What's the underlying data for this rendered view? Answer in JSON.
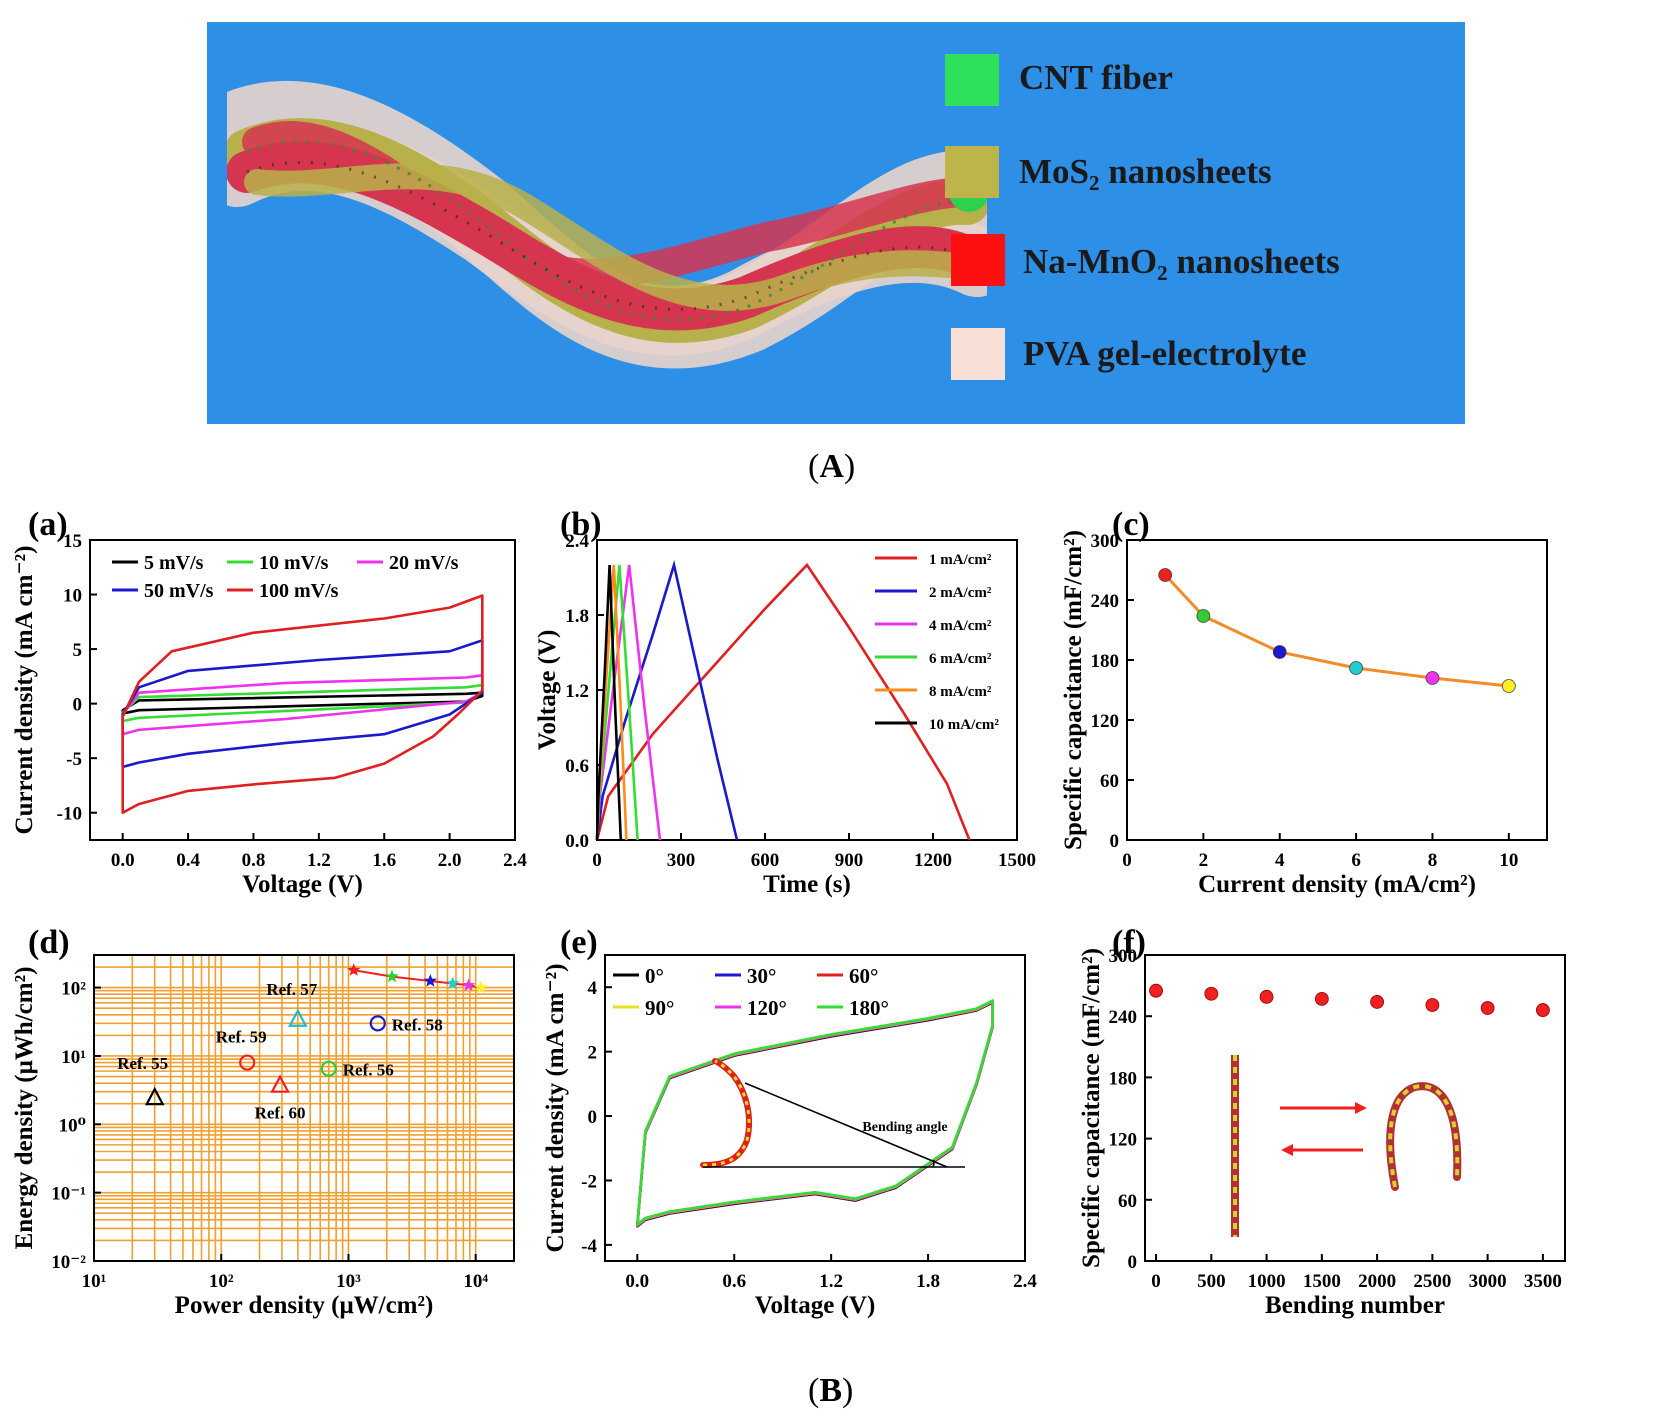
{
  "panelA": {
    "legend": [
      {
        "label": "CNT fiber",
        "color": "#2fe05a"
      },
      {
        "label": "MoS₂ nanosheets",
        "color": "#bdb54a"
      },
      {
        "label": "Na-MnO₂ nanosheets",
        "color": "#ff1010"
      },
      {
        "label": "PVA gel-electrolyte",
        "color": "#f8e0d6"
      }
    ],
    "caption": "A"
  },
  "panelB": {
    "caption": "B"
  },
  "chart_data": [
    {
      "id": "a",
      "type": "line",
      "panel_label": "(a)",
      "xlabel": "Voltage (V)",
      "ylabel": "Current density (mA cm⁻²)",
      "xlim": [
        -0.2,
        2.4
      ],
      "ylim": [
        -12.5,
        15
      ],
      "xticks": [
        0.0,
        0.4,
        0.8,
        1.2,
        1.6,
        2.0,
        2.4
      ],
      "xtick_labels": [
        "0.0",
        "0.4",
        "0.8",
        "1.2",
        "1.6",
        "2.0",
        "2.4"
      ],
      "yticks": [
        -10,
        -5,
        0,
        5,
        10,
        15
      ],
      "ytick_labels": [
        "-10",
        "-5",
        "0",
        "5",
        "10",
        "15"
      ],
      "series": [
        {
          "name": "5 mV/s",
          "color": "#000000",
          "x": [
            0,
            0.1,
            2.1,
            2.2,
            2.2,
            2.1,
            0.1,
            0
          ],
          "y": [
            -0.6,
            0.3,
            0.9,
            1.0,
            0.7,
            0.2,
            -0.6,
            -0.9
          ]
        },
        {
          "name": "10 mV/s",
          "color": "#33dd33",
          "x": [
            0,
            0.1,
            2.1,
            2.2,
            2.2,
            2.1,
            0.1,
            0
          ],
          "y": [
            -0.8,
            0.6,
            1.5,
            1.7,
            1.0,
            0.1,
            -1.3,
            -1.6
          ]
        },
        {
          "name": "20 mV/s",
          "color": "#ee33ee",
          "x": [
            0,
            0.1,
            1.0,
            2.1,
            2.2,
            2.2,
            2.1,
            1.0,
            0.1,
            0
          ],
          "y": [
            -1.0,
            1.0,
            1.9,
            2.4,
            2.6,
            1.0,
            0.2,
            -1.4,
            -2.4,
            -2.8
          ]
        },
        {
          "name": "50 mV/s",
          "color": "#1a1acc",
          "x": [
            0,
            0.1,
            0.4,
            1.2,
            2.0,
            2.2,
            2.2,
            2.0,
            1.6,
            1.0,
            0.4,
            0.1,
            0
          ],
          "y": [
            -1.0,
            1.5,
            3.0,
            4.0,
            4.8,
            5.8,
            1.0,
            -1.0,
            -2.8,
            -3.6,
            -4.6,
            -5.4,
            -5.8
          ]
        },
        {
          "name": "100 mV/s",
          "color": "#e02020",
          "x": [
            0,
            0.1,
            0.3,
            0.8,
            1.6,
            2.0,
            2.2,
            2.2,
            2.05,
            1.9,
            1.6,
            1.3,
            0.8,
            0.4,
            0.1,
            0
          ],
          "y": [
            -1.2,
            2.0,
            4.8,
            6.5,
            7.8,
            8.8,
            9.9,
            1.2,
            -1.0,
            -3.0,
            -5.5,
            -6.8,
            -7.4,
            -8.0,
            -9.2,
            -10.0
          ]
        }
      ]
    },
    {
      "id": "b",
      "type": "line",
      "panel_label": "(b)",
      "xlabel": "Time (s)",
      "ylabel": "Voltage (V)",
      "xlim": [
        0,
        1500
      ],
      "ylim": [
        0,
        2.4
      ],
      "xticks": [
        0,
        300,
        600,
        900,
        1200,
        1500
      ],
      "xtick_labels": [
        "0",
        "300",
        "600",
        "900",
        "1200",
        "1500"
      ],
      "yticks": [
        0.0,
        0.6,
        1.2,
        1.8,
        2.4
      ],
      "ytick_labels": [
        "0.0",
        "0.6",
        "1.2",
        "1.8",
        "2.4"
      ],
      "series": [
        {
          "name": "1 mA/cm²",
          "color": "#e02020",
          "x": [
            0,
            40,
            200,
            400,
            600,
            750,
            900,
            1100,
            1250,
            1330
          ],
          "y": [
            0,
            0.35,
            0.85,
            1.35,
            1.85,
            2.2,
            1.7,
            1.0,
            0.45,
            0
          ]
        },
        {
          "name": "2 mA/cm²",
          "color": "#1a1acc",
          "x": [
            0,
            20,
            100,
            200,
            275,
            350,
            430,
            500
          ],
          "y": [
            0,
            0.35,
            0.95,
            1.65,
            2.2,
            1.45,
            0.65,
            0
          ]
        },
        {
          "name": "4 mA/cm²",
          "color": "#ee33ee",
          "x": [
            0,
            10,
            60,
            115,
            170,
            225
          ],
          "y": [
            0,
            0.35,
            1.25,
            2.2,
            1.05,
            0
          ]
        },
        {
          "name": "6 mA/cm²",
          "color": "#33dd33",
          "x": [
            0,
            8,
            45,
            80,
            115,
            145
          ],
          "y": [
            0,
            0.35,
            1.3,
            2.2,
            1.05,
            0
          ]
        },
        {
          "name": "8 mA/cm²",
          "color": "#ff8c1a",
          "x": [
            0,
            6,
            35,
            60,
            85,
            105
          ],
          "y": [
            0,
            0.35,
            1.35,
            2.2,
            1.05,
            0
          ]
        },
        {
          "name": "10 mA/cm²",
          "color": "#000000",
          "x": [
            0,
            5,
            28,
            45,
            65,
            85
          ],
          "y": [
            0,
            0.35,
            1.35,
            2.2,
            1.05,
            0
          ]
        }
      ]
    },
    {
      "id": "c",
      "type": "line",
      "panel_label": "(c)",
      "xlabel": "Current density (mA/cm²)",
      "ylabel": "Specific capacitance (mF/cm²)",
      "xlim": [
        0,
        11
      ],
      "ylim": [
        0,
        300
      ],
      "xticks": [
        0,
        2,
        4,
        6,
        8,
        10
      ],
      "xtick_labels": [
        "0",
        "2",
        "4",
        "6",
        "8",
        "10"
      ],
      "yticks": [
        0,
        60,
        120,
        180,
        240,
        300
      ],
      "ytick_labels": [
        "0",
        "60",
        "120",
        "180",
        "240",
        "300"
      ],
      "line_color": "#f28c28",
      "points": [
        {
          "x": 1,
          "y": 265,
          "color": "#ee2020"
        },
        {
          "x": 2,
          "y": 224,
          "color": "#33cc33"
        },
        {
          "x": 4,
          "y": 188,
          "color": "#1a1acc"
        },
        {
          "x": 6,
          "y": 172,
          "color": "#22cccc"
        },
        {
          "x": 8,
          "y": 162,
          "color": "#ee33ee"
        },
        {
          "x": 10,
          "y": 154,
          "color": "#ffee22"
        }
      ]
    },
    {
      "id": "d",
      "type": "scatter",
      "panel_label": "(d)",
      "xlabel": "Power density (μW/cm²)",
      "ylabel": "Energy density (μWh/cm²)",
      "x_scale": "log",
      "y_scale": "log",
      "xlim": [
        10,
        20000
      ],
      "ylim": [
        0.01,
        300
      ],
      "xticks": [
        10,
        100,
        1000,
        10000
      ],
      "xtick_labels": [
        "10¹",
        "10²",
        "10³",
        "10⁴"
      ],
      "yticks": [
        0.01,
        0.1,
        1,
        10,
        100
      ],
      "ytick_labels": [
        "10⁻²",
        "10⁻¹",
        "10⁰",
        "10¹",
        "10²"
      ],
      "grid_color": "#f0a030",
      "refs": [
        {
          "label": "Ref. 55",
          "x": 30,
          "y": 2.5,
          "marker": "triangle",
          "color": "#000000"
        },
        {
          "label": "Ref. 56",
          "x": 700,
          "y": 6.5,
          "marker": "circle",
          "color": "#33cc33"
        },
        {
          "label": "Ref. 57",
          "x": 400,
          "y": 35,
          "marker": "triangle",
          "color": "#22bbcc"
        },
        {
          "label": "Ref. 58",
          "x": 1700,
          "y": 30,
          "marker": "circle",
          "color": "#1a1acc"
        },
        {
          "label": "Ref. 59",
          "x": 160,
          "y": 8,
          "marker": "circle",
          "color": "#ee2020"
        },
        {
          "label": "Ref. 60",
          "x": 290,
          "y": 3.8,
          "marker": "triangle",
          "color": "#ee2020"
        }
      ],
      "stars": {
        "line_color": "#ee2020",
        "points": [
          {
            "x": 1100,
            "y": 180,
            "color": "#ee2020"
          },
          {
            "x": 2200,
            "y": 145,
            "color": "#33cc33"
          },
          {
            "x": 4400,
            "y": 125,
            "color": "#1a1acc"
          },
          {
            "x": 6600,
            "y": 115,
            "color": "#22cccc"
          },
          {
            "x": 8800,
            "y": 108,
            "color": "#ee33ee"
          },
          {
            "x": 11000,
            "y": 100,
            "color": "#ffee22"
          }
        ]
      }
    },
    {
      "id": "e",
      "type": "line",
      "panel_label": "(e)",
      "xlabel": "Voltage (V)",
      "ylabel": "Current density (mA cm⁻²)",
      "xlim": [
        -0.2,
        2.4
      ],
      "ylim": [
        -4.5,
        5
      ],
      "xticks": [
        0.0,
        0.6,
        1.2,
        1.8,
        2.4
      ],
      "xtick_labels": [
        "0.0",
        "0.6",
        "1.2",
        "1.8",
        "2.4"
      ],
      "yticks": [
        -4,
        -2,
        0,
        2,
        4
      ],
      "ytick_labels": [
        "-4",
        "-2",
        "0",
        "2",
        "4"
      ],
      "inset_label": "Bending angle",
      "series": [
        {
          "name": "0°",
          "color": "#000000"
        },
        {
          "name": "30°",
          "color": "#1a1acc"
        },
        {
          "name": "60°",
          "color": "#e02020"
        },
        {
          "name": "90°",
          "color": "#e8e020"
        },
        {
          "name": "120°",
          "color": "#ee33ee"
        },
        {
          "name": "180°",
          "color": "#33dd33"
        }
      ],
      "curve": {
        "x": [
          0,
          0.05,
          0.2,
          0.6,
          1.2,
          1.8,
          2.1,
          2.2,
          2.2,
          2.1,
          1.95,
          1.6,
          1.35,
          1.1,
          0.6,
          0.2,
          0.05,
          0
        ],
        "y": [
          -3.4,
          -0.5,
          1.2,
          1.9,
          2.5,
          3.0,
          3.3,
          3.55,
          2.8,
          1.0,
          -1.0,
          -2.2,
          -2.6,
          -2.4,
          -2.7,
          -3.0,
          -3.2,
          -3.4
        ]
      }
    },
    {
      "id": "f",
      "type": "scatter",
      "panel_label": "(f)",
      "xlabel": "Bending number",
      "ylabel": "Specific capacitance (mF/cm²)",
      "xlim": [
        -100,
        3700
      ],
      "ylim": [
        0,
        300
      ],
      "xticks": [
        0,
        500,
        1000,
        1500,
        2000,
        2500,
        3000,
        3500
      ],
      "xtick_labels": [
        "0",
        "500",
        "1000",
        "1500",
        "2000",
        "2500",
        "3000",
        "3500"
      ],
      "yticks": [
        0,
        60,
        120,
        180,
        240,
        300
      ],
      "ytick_labels": [
        "0",
        "60",
        "120",
        "180",
        "240",
        "300"
      ],
      "point_color": "#ee2020",
      "x": [
        0,
        500,
        1000,
        1500,
        2000,
        2500,
        3000,
        3500
      ],
      "y": [
        265,
        262,
        259,
        257,
        254,
        251,
        248,
        246
      ]
    }
  ]
}
